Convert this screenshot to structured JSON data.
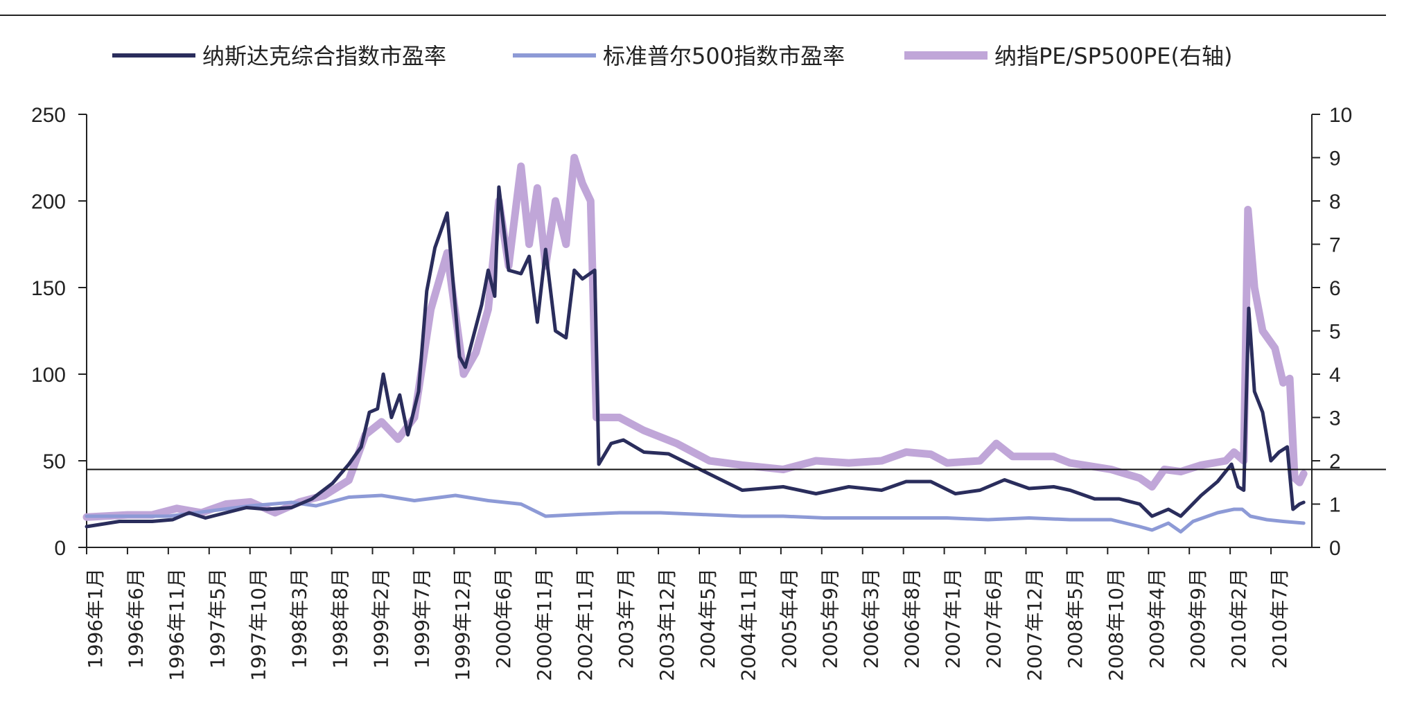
{
  "chart_data": {
    "type": "line",
    "title": "",
    "legend_position": "top",
    "y_left": {
      "ylim": [
        0,
        250
      ],
      "ticks": [
        "0",
        "50",
        "100",
        "150",
        "200",
        "250"
      ]
    },
    "y_right": {
      "ylim": [
        0,
        10
      ],
      "ticks": [
        "0",
        "1",
        "2",
        "3",
        "4",
        "5",
        "6",
        "7",
        "8",
        "9",
        "10"
      ]
    },
    "x_range": [
      1996.0,
      2010.95
    ],
    "x_tick_labels": [
      "1996年1月",
      "1996年6月",
      "1996年11月",
      "1997年5月",
      "1997年10月",
      "1998年3月",
      "1998年8月",
      "1999年2月",
      "1999年7月",
      "1999年12月",
      "2000年6月",
      "2000年11月",
      "2002年11月",
      "2003年7月",
      "2003年12月",
      "2004年5月",
      "2004年11月",
      "2005年4月",
      "2005年9月",
      "2006年3月",
      "2006年8月",
      "2007年1月",
      "2007年6月",
      "2007年12月",
      "2008年5月",
      "2008年10月",
      "2009年4月",
      "2009年9月",
      "2010年2月",
      "2010年7月"
    ],
    "reference_line": {
      "axis": "right",
      "value": 1.8
    },
    "series": [
      {
        "name": "纳斯达克综合指数市盈率",
        "axis": "left",
        "color": "#2a2d5c",
        "points": [
          [
            1996.0,
            12
          ],
          [
            1996.4,
            15
          ],
          [
            1996.8,
            15
          ],
          [
            1997.05,
            16
          ],
          [
            1997.25,
            20
          ],
          [
            1997.45,
            17
          ],
          [
            1997.7,
            20
          ],
          [
            1997.95,
            23
          ],
          [
            1998.2,
            22
          ],
          [
            1998.5,
            23
          ],
          [
            1998.75,
            28
          ],
          [
            1999.0,
            37
          ],
          [
            1999.2,
            48
          ],
          [
            1999.35,
            58
          ],
          [
            1999.45,
            78
          ],
          [
            1999.55,
            80
          ],
          [
            1999.62,
            100
          ],
          [
            1999.72,
            75
          ],
          [
            1999.82,
            88
          ],
          [
            1999.92,
            65
          ],
          [
            2000.05,
            90
          ],
          [
            2000.15,
            148
          ],
          [
            2000.25,
            173
          ],
          [
            2000.4,
            193
          ],
          [
            2000.55,
            110
          ],
          [
            2000.62,
            104
          ],
          [
            2000.72,
            122
          ],
          [
            2000.82,
            140
          ],
          [
            2000.9,
            160
          ],
          [
            2000.98,
            145
          ],
          [
            2001.03,
            208
          ],
          [
            2001.15,
            160
          ],
          [
            2001.3,
            158
          ],
          [
            2001.4,
            168
          ],
          [
            2001.5,
            130
          ],
          [
            2001.6,
            172
          ],
          [
            2001.72,
            125
          ],
          [
            2001.85,
            121
          ],
          [
            2001.95,
            160
          ],
          [
            2002.05,
            155
          ],
          [
            2002.2,
            160
          ],
          [
            2002.25,
            48
          ],
          [
            2002.4,
            60
          ],
          [
            2002.55,
            62
          ],
          [
            2002.8,
            55
          ],
          [
            2003.1,
            54
          ],
          [
            2003.4,
            47
          ],
          [
            2003.7,
            40
          ],
          [
            2004.0,
            33
          ],
          [
            2004.5,
            35
          ],
          [
            2004.9,
            31
          ],
          [
            2005.3,
            35
          ],
          [
            2005.7,
            33
          ],
          [
            2006.0,
            38
          ],
          [
            2006.3,
            38
          ],
          [
            2006.6,
            31
          ],
          [
            2006.9,
            33
          ],
          [
            2007.2,
            39
          ],
          [
            2007.5,
            34
          ],
          [
            2007.8,
            35
          ],
          [
            2008.0,
            33
          ],
          [
            2008.3,
            28
          ],
          [
            2008.6,
            28
          ],
          [
            2008.85,
            25
          ],
          [
            2009.0,
            18
          ],
          [
            2009.2,
            22
          ],
          [
            2009.35,
            18
          ],
          [
            2009.6,
            30
          ],
          [
            2009.8,
            38
          ],
          [
            2009.97,
            48
          ],
          [
            2010.05,
            35
          ],
          [
            2010.12,
            33
          ],
          [
            2010.18,
            138
          ],
          [
            2010.25,
            90
          ],
          [
            2010.35,
            78
          ],
          [
            2010.45,
            50
          ],
          [
            2010.55,
            55
          ],
          [
            2010.65,
            58
          ],
          [
            2010.72,
            22
          ],
          [
            2010.8,
            25
          ],
          [
            2010.85,
            26
          ]
        ]
      },
      {
        "name": "标准普尔500指数市盈率",
        "axis": "left",
        "color": "#8d9ad6",
        "points": [
          [
            1996.0,
            18
          ],
          [
            1996.6,
            18
          ],
          [
            1997.0,
            18
          ],
          [
            1997.5,
            21
          ],
          [
            1998.0,
            24
          ],
          [
            1998.5,
            26
          ],
          [
            1998.8,
            24
          ],
          [
            1999.2,
            29
          ],
          [
            1999.6,
            30
          ],
          [
            2000.0,
            27
          ],
          [
            2000.5,
            30
          ],
          [
            2000.9,
            27
          ],
          [
            2001.3,
            25
          ],
          [
            2001.6,
            18
          ],
          [
            2002.0,
            19
          ],
          [
            2002.5,
            20
          ],
          [
            2003.0,
            20
          ],
          [
            2003.5,
            19
          ],
          [
            2004.0,
            18
          ],
          [
            2004.5,
            18
          ],
          [
            2005.0,
            17
          ],
          [
            2005.5,
            17
          ],
          [
            2006.0,
            17
          ],
          [
            2006.5,
            17
          ],
          [
            2007.0,
            16
          ],
          [
            2007.5,
            17
          ],
          [
            2008.0,
            16
          ],
          [
            2008.5,
            16
          ],
          [
            2008.85,
            12
          ],
          [
            2009.0,
            10
          ],
          [
            2009.2,
            14
          ],
          [
            2009.35,
            9
          ],
          [
            2009.5,
            15
          ],
          [
            2009.8,
            20
          ],
          [
            2010.0,
            22
          ],
          [
            2010.1,
            22
          ],
          [
            2010.2,
            18
          ],
          [
            2010.4,
            16
          ],
          [
            2010.6,
            15
          ],
          [
            2010.85,
            14
          ]
        ]
      },
      {
        "name": "纳指PE/SP500PE(右轴)",
        "axis": "right",
        "color": "#c0a6d8",
        "points": [
          [
            1996.0,
            0.7
          ],
          [
            1996.5,
            0.75
          ],
          [
            1996.8,
            0.75
          ],
          [
            1997.1,
            0.9
          ],
          [
            1997.4,
            0.8
          ],
          [
            1997.7,
            1.0
          ],
          [
            1998.0,
            1.05
          ],
          [
            1998.3,
            0.8
          ],
          [
            1998.6,
            1.05
          ],
          [
            1998.9,
            1.2
          ],
          [
            1999.2,
            1.55
          ],
          [
            1999.4,
            2.6
          ],
          [
            1999.6,
            2.9
          ],
          [
            1999.8,
            2.5
          ],
          [
            2000.0,
            3.0
          ],
          [
            2000.2,
            5.5
          ],
          [
            2000.4,
            6.8
          ],
          [
            2000.6,
            4.0
          ],
          [
            2000.75,
            4.5
          ],
          [
            2000.9,
            5.5
          ],
          [
            2001.03,
            8.0
          ],
          [
            2001.15,
            6.5
          ],
          [
            2001.3,
            8.8
          ],
          [
            2001.4,
            7.0
          ],
          [
            2001.5,
            8.3
          ],
          [
            2001.6,
            6.5
          ],
          [
            2001.72,
            8.0
          ],
          [
            2001.85,
            7.0
          ],
          [
            2001.95,
            9.0
          ],
          [
            2002.05,
            8.4
          ],
          [
            2002.15,
            8.0
          ],
          [
            2002.22,
            3.0
          ],
          [
            2002.5,
            3.0
          ],
          [
            2002.8,
            2.7
          ],
          [
            2003.2,
            2.4
          ],
          [
            2003.6,
            2.0
          ],
          [
            2004.0,
            1.9
          ],
          [
            2004.5,
            1.8
          ],
          [
            2004.9,
            2.0
          ],
          [
            2005.3,
            1.95
          ],
          [
            2005.7,
            2.0
          ],
          [
            2006.0,
            2.2
          ],
          [
            2006.3,
            2.15
          ],
          [
            2006.5,
            1.95
          ],
          [
            2006.9,
            2.0
          ],
          [
            2007.1,
            2.4
          ],
          [
            2007.3,
            2.1
          ],
          [
            2007.8,
            2.1
          ],
          [
            2008.0,
            1.95
          ],
          [
            2008.5,
            1.8
          ],
          [
            2008.85,
            1.6
          ],
          [
            2009.0,
            1.4
          ],
          [
            2009.15,
            1.8
          ],
          [
            2009.35,
            1.75
          ],
          [
            2009.6,
            1.9
          ],
          [
            2009.9,
            2.0
          ],
          [
            2010.0,
            2.2
          ],
          [
            2010.12,
            2.0
          ],
          [
            2010.17,
            7.8
          ],
          [
            2010.25,
            6.0
          ],
          [
            2010.35,
            5.0
          ],
          [
            2010.5,
            4.6
          ],
          [
            2010.6,
            3.8
          ],
          [
            2010.68,
            3.9
          ],
          [
            2010.74,
            1.6
          ],
          [
            2010.8,
            1.5
          ],
          [
            2010.85,
            1.7
          ]
        ]
      }
    ]
  }
}
